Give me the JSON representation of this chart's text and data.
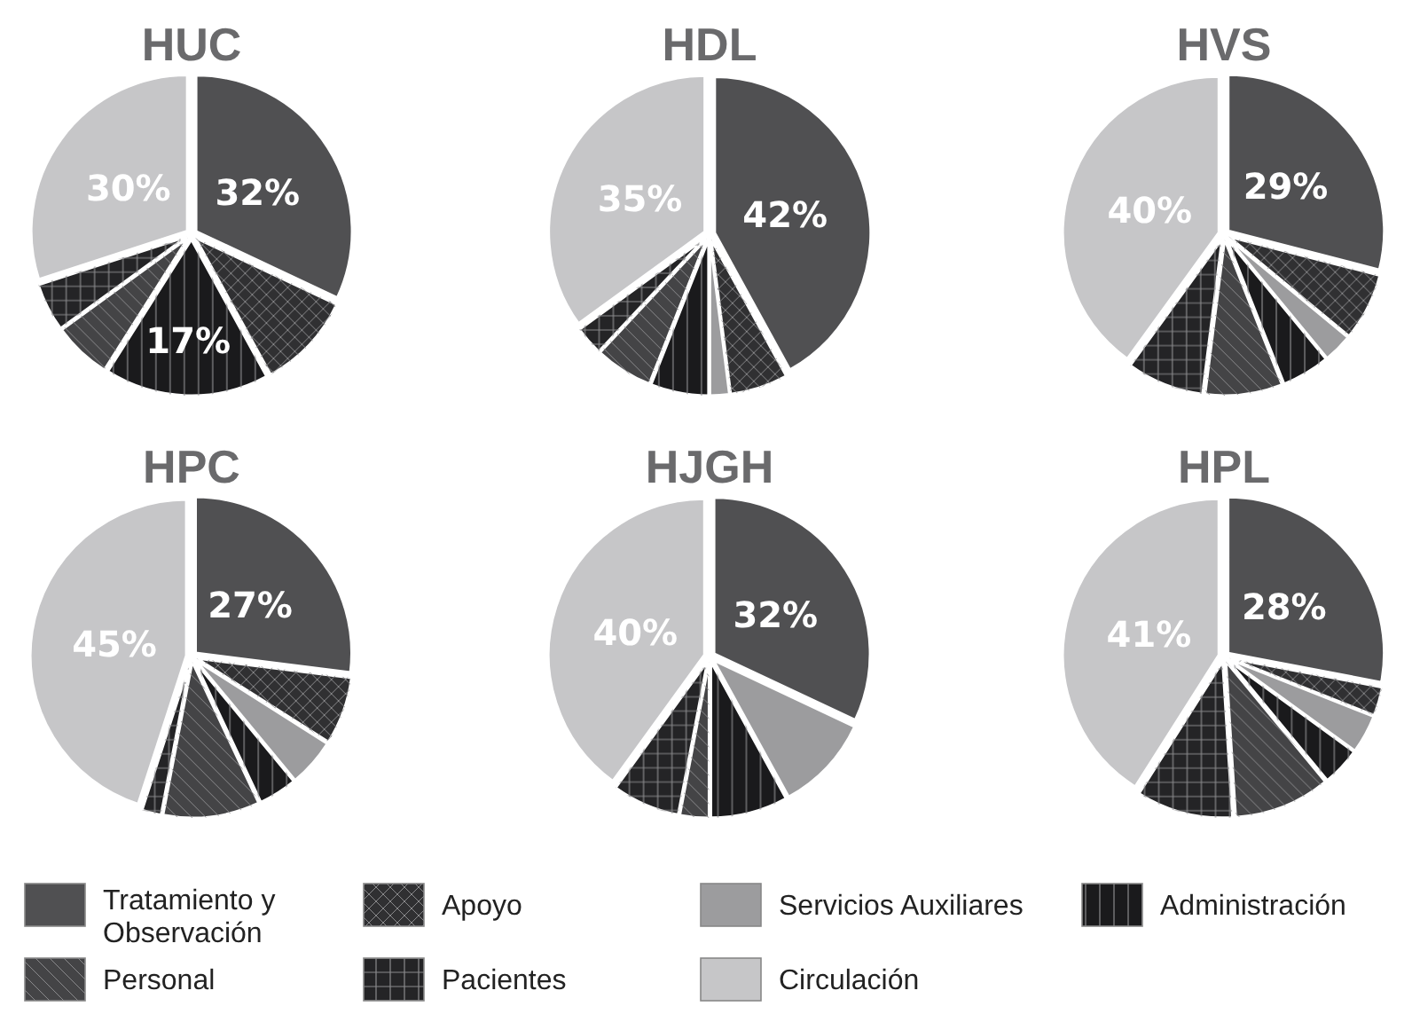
{
  "chart_data": [
    {
      "type": "pie",
      "title": "HUC",
      "categories": [
        "Tratamiento y Observación",
        "Apoyo",
        "Servicios Auxiliares",
        "Administración",
        "Personal",
        "Pacientes",
        "Circulación"
      ],
      "values": [
        32,
        10,
        null,
        17,
        6,
        5,
        30
      ],
      "colors": [
        "#505052",
        "#303032",
        "#9c9c9e",
        "#1a1a1c",
        "#444446",
        "#242426",
        "#c6c6c8"
      ],
      "value_labels": [
        "32%",
        null,
        null,
        "17%",
        null,
        null,
        "30%"
      ],
      "legend": "bottom"
    },
    {
      "type": "pie",
      "title": "HDL",
      "values": [
        42,
        6,
        2,
        6,
        6,
        3,
        35
      ],
      "colors": [
        "#505052",
        "#303032",
        "#9c9c9e",
        "#1a1a1c",
        "#444446",
        "#242426",
        "#c6c6c8"
      ],
      "value_labels": [
        "42%",
        null,
        null,
        null,
        null,
        null,
        "35%"
      ]
    },
    {
      "type": "pie",
      "title": "HVS",
      "values": [
        29,
        7,
        3,
        5,
        8,
        8,
        40
      ],
      "colors": [
        "#505052",
        "#303032",
        "#9c9c9e",
        "#1a1a1c",
        "#444446",
        "#242426",
        "#c6c6c8"
      ],
      "value_labels": [
        "29%",
        null,
        null,
        null,
        null,
        null,
        "40%"
      ]
    },
    {
      "type": "pie",
      "title": "HPC",
      "values": [
        27,
        7,
        5,
        4,
        10,
        2,
        45
      ],
      "colors": [
        "#505052",
        "#303032",
        "#9c9c9e",
        "#1a1a1c",
        "#444446",
        "#242426",
        "#c6c6c8"
      ],
      "value_labels": [
        "27%",
        null,
        null,
        null,
        null,
        null,
        "45%"
      ]
    },
    {
      "type": "pie",
      "title": "HJGH",
      "values": [
        32,
        null,
        10,
        8,
        3,
        7,
        40
      ],
      "colors": [
        "#505052",
        "#303032",
        "#9c9c9e",
        "#1a1a1c",
        "#444446",
        "#242426",
        "#c6c6c8"
      ],
      "value_labels": [
        "32%",
        null,
        null,
        null,
        null,
        null,
        "40%"
      ]
    },
    {
      "type": "pie",
      "title": "HPL",
      "values": [
        28,
        3,
        4,
        4,
        10,
        10,
        41
      ],
      "colors": [
        "#505052",
        "#303032",
        "#9c9c9e",
        "#1a1a1c",
        "#444446",
        "#242426",
        "#c6c6c8"
      ],
      "value_labels": [
        "28%",
        null,
        null,
        null,
        null,
        null,
        "41%"
      ]
    }
  ]
}
